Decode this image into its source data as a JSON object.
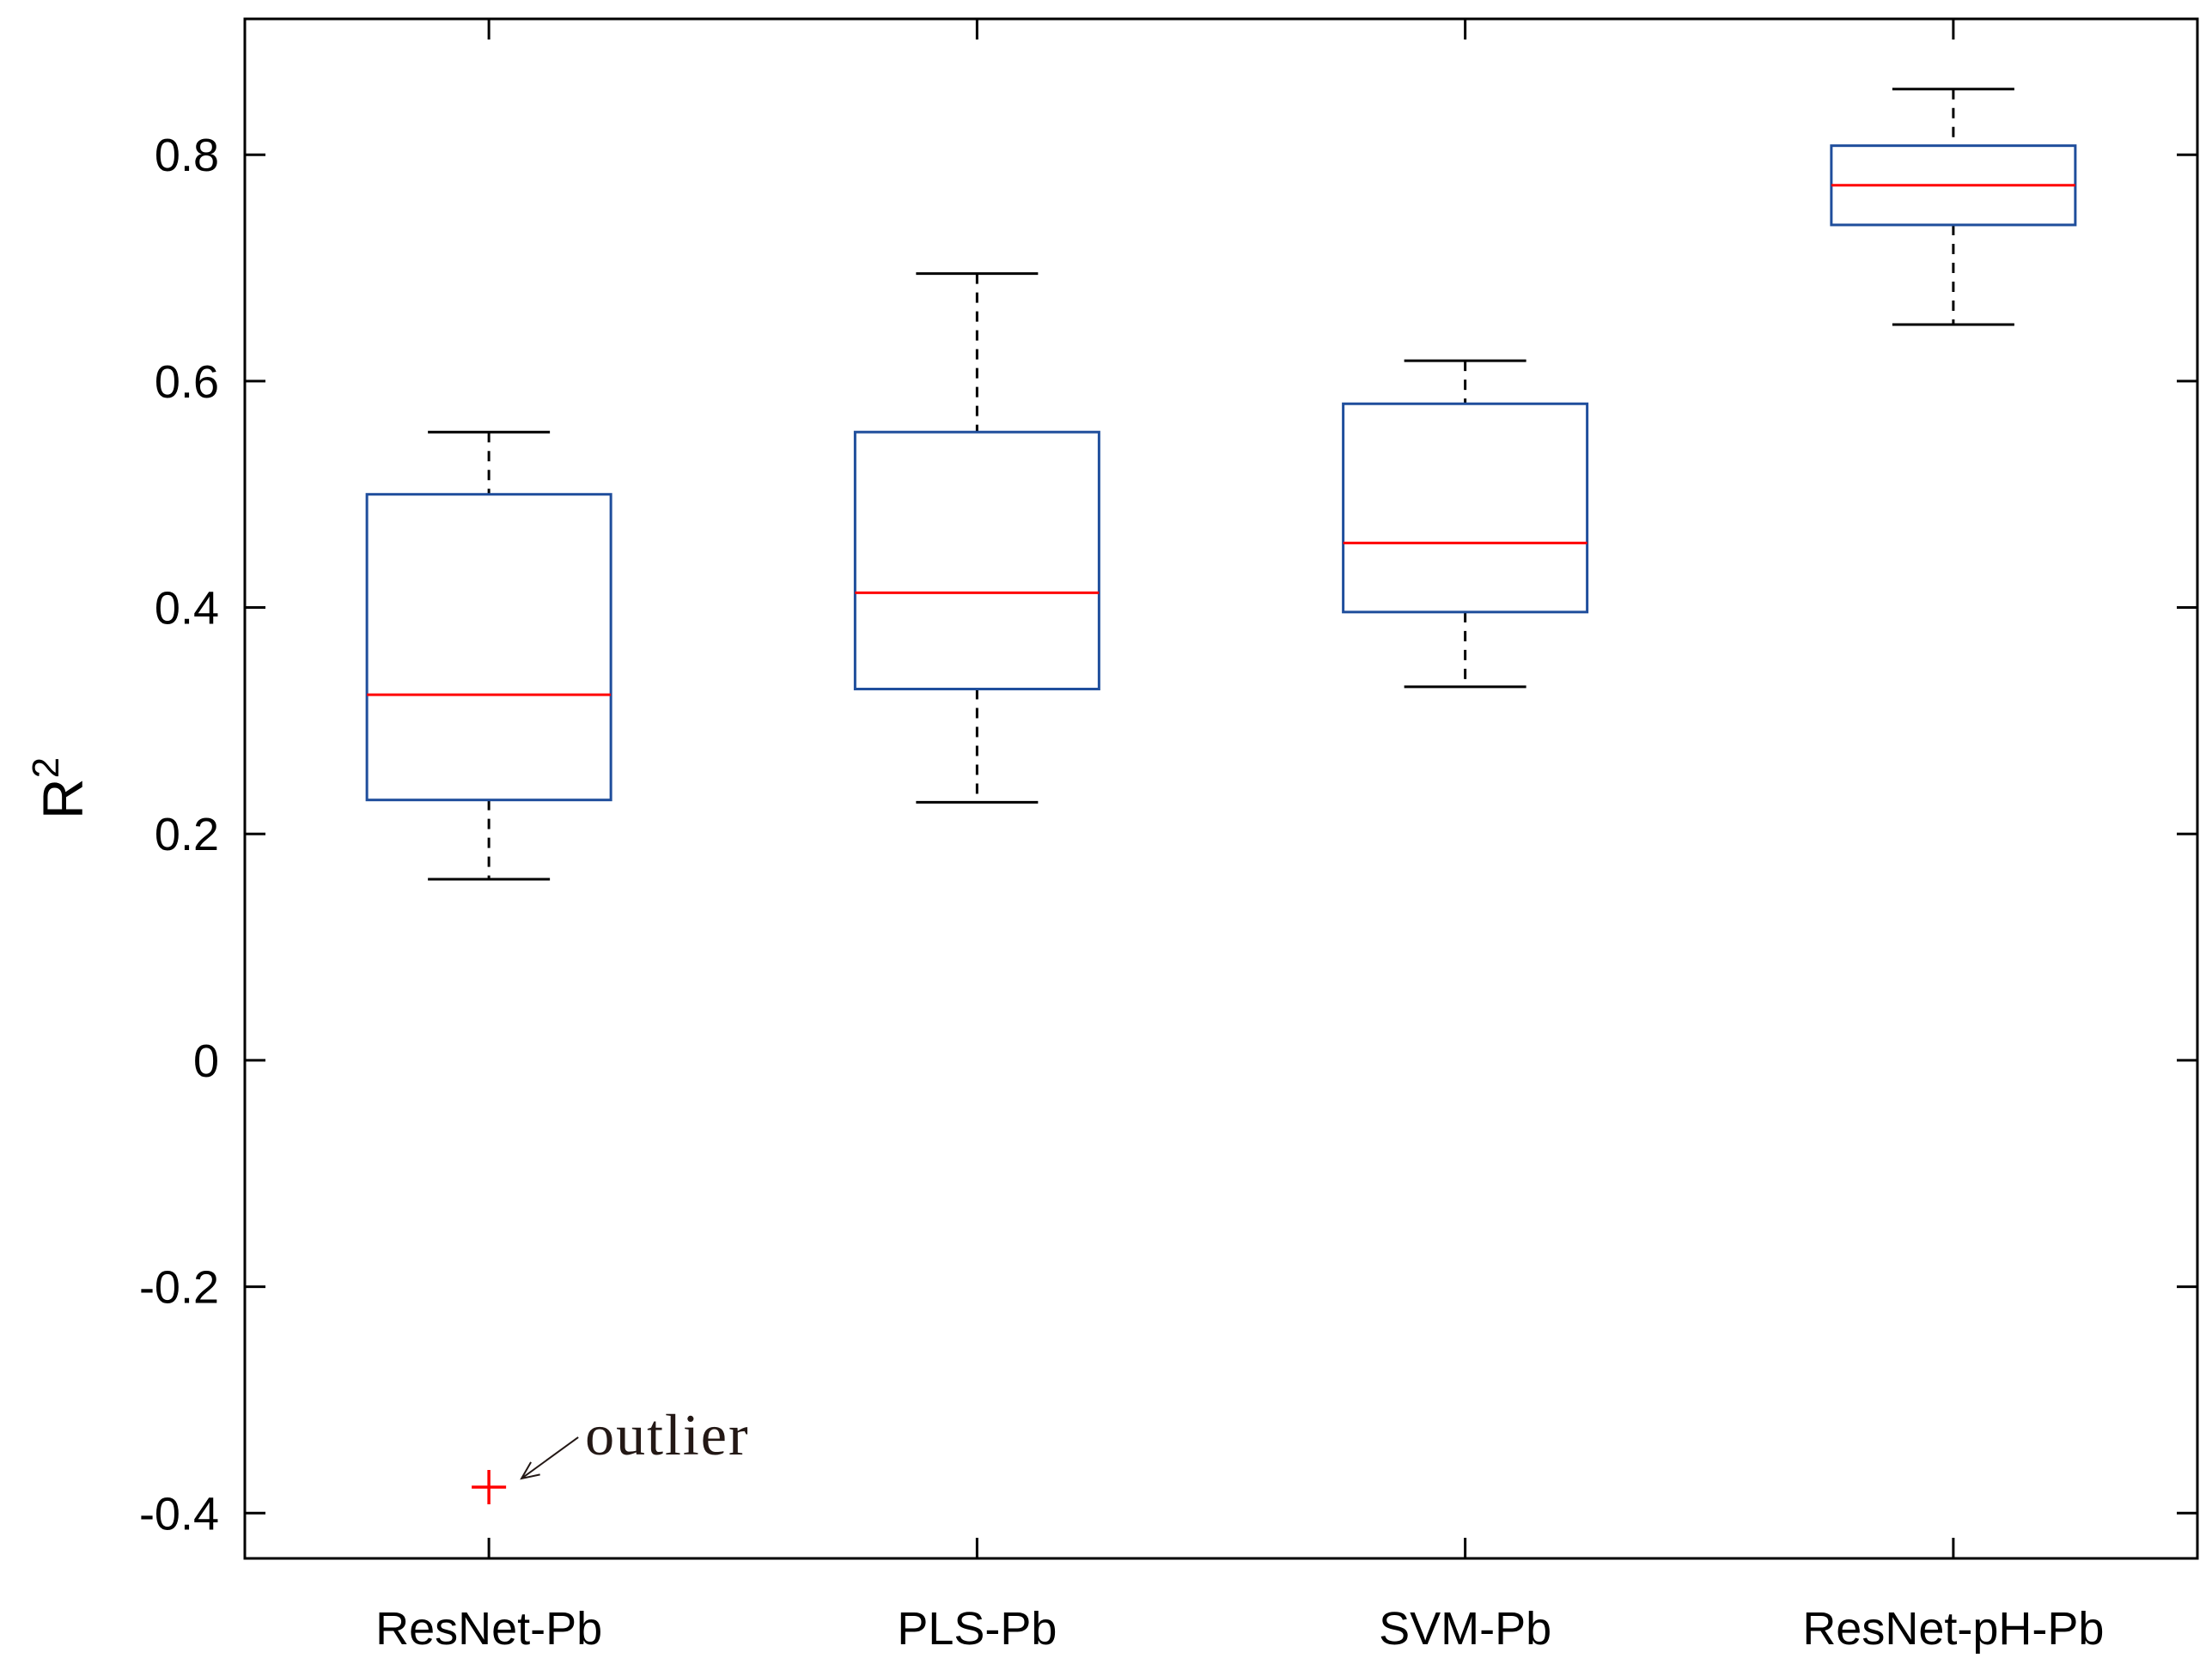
{
  "chart_data": {
    "type": "boxplot",
    "title": "",
    "xlabel": "",
    "ylabel": "R",
    "ylabel_superscript": "2",
    "ylim": [
      -0.44,
      0.92
    ],
    "yticks": [
      -0.4,
      -0.2,
      0,
      0.2,
      0.4,
      0.6,
      0.8
    ],
    "ytick_labels": [
      "-0.4",
      "-0.2",
      "0",
      "0.2",
      "0.4",
      "0.6",
      "0.8"
    ],
    "categories": [
      "ResNet-Pb",
      "PLS-Pb",
      "SVM-Pb",
      "ResNet-pH-Pb"
    ],
    "boxes": [
      {
        "name": "ResNet-Pb",
        "whisker_low": 0.16,
        "q1": 0.23,
        "median": 0.323,
        "q3": 0.5,
        "whisker_high": 0.555,
        "outliers": [
          -0.377
        ]
      },
      {
        "name": "PLS-Pb",
        "whisker_low": 0.228,
        "q1": 0.328,
        "median": 0.413,
        "q3": 0.555,
        "whisker_high": 0.695,
        "outliers": []
      },
      {
        "name": "SVM-Pb",
        "whisker_low": 0.33,
        "q1": 0.396,
        "median": 0.457,
        "q3": 0.58,
        "whisker_high": 0.618,
        "outliers": []
      },
      {
        "name": "ResNet-pH-Pb",
        "whisker_low": 0.65,
        "q1": 0.738,
        "median": 0.773,
        "q3": 0.808,
        "whisker_high": 0.858,
        "outliers": []
      }
    ],
    "annotations": [
      {
        "text": "outlier",
        "target": "ResNet-Pb",
        "target_value": -0.377
      }
    ],
    "colors": {
      "box": "#1f4e9c",
      "median": "#ff0000",
      "whisker": "#000000",
      "outlier": "#ff0000",
      "axis": "#000000",
      "annotation": "#231815"
    }
  }
}
